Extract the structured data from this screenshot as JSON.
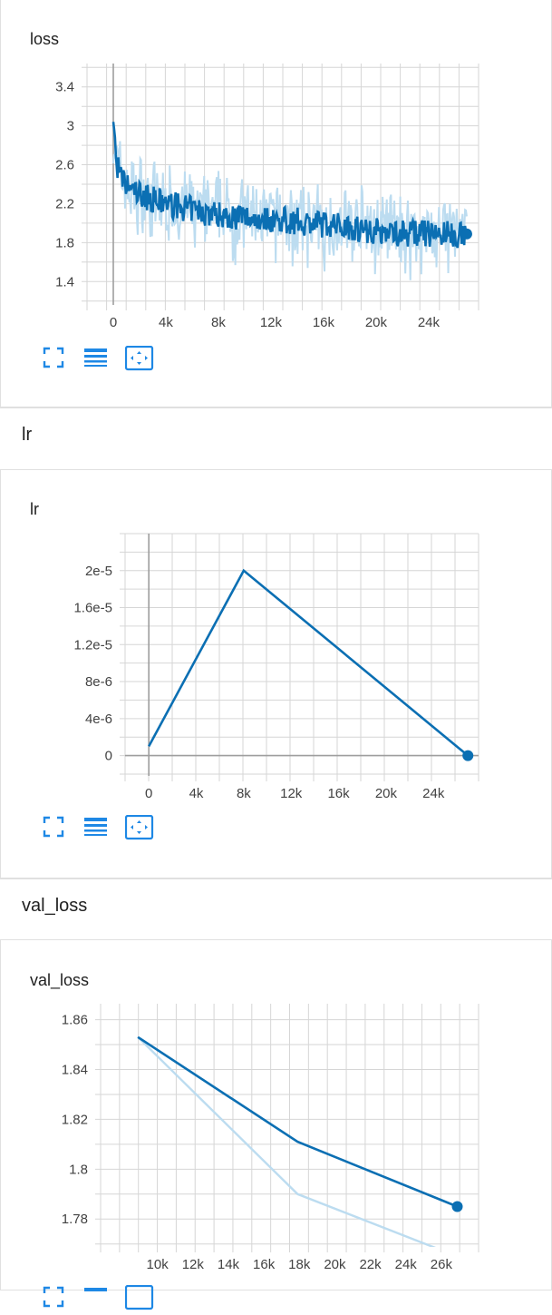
{
  "sections": [
    {
      "header": "",
      "card_title": "loss"
    },
    {
      "header": "lr",
      "card_title": "lr"
    },
    {
      "header": "val_loss",
      "card_title": "val_loss"
    }
  ],
  "toolbar": {
    "icons": [
      "fit-to-data-icon",
      "toggle-log-scale-icon",
      "reset-view-icon"
    ]
  },
  "colors": {
    "line": "#0b6fb3",
    "raw": "#bcdcf0",
    "grid": "#d6d6d6",
    "axis": "#9e9e9e"
  },
  "chart_data": [
    {
      "type": "line",
      "title": "loss",
      "xlabel": "",
      "ylabel": "",
      "xlim": [
        -2000,
        27800
      ],
      "ylim": [
        1.16,
        3.64
      ],
      "x_ticks": [
        0,
        4000,
        8000,
        12000,
        16000,
        20000,
        24000
      ],
      "x_tick_labels": [
        "0",
        "4k",
        "8k",
        "12k",
        "16k",
        "20k",
        "24k"
      ],
      "y_ticks": [
        1.4,
        1.8,
        2.2,
        2.6,
        3.0,
        3.4
      ],
      "y_tick_labels": [
        "1.4",
        "1.8",
        "2.2",
        "2.6",
        "3",
        "3.4"
      ],
      "grid": true,
      "series": [
        {
          "role": "smoothed",
          "x": [
            0,
            200,
            600,
            1000,
            1500,
            2000,
            3000,
            4000,
            5000,
            6000,
            7000,
            8000,
            9000,
            10000,
            11000,
            12000,
            13000,
            14000,
            15000,
            16000,
            17000,
            18000,
            19000,
            20000,
            21000,
            22000,
            23000,
            24000,
            25000,
            26000,
            26900
          ],
          "y": [
            3.1,
            2.65,
            2.45,
            2.38,
            2.34,
            2.3,
            2.24,
            2.2,
            2.17,
            2.14,
            2.11,
            2.09,
            2.07,
            2.06,
            2.05,
            2.04,
            2.03,
            2.02,
            2.0,
            1.99,
            1.98,
            1.97,
            1.94,
            1.92,
            1.91,
            1.9,
            1.9,
            1.89,
            1.89,
            1.88,
            1.89
          ]
        },
        {
          "role": "raw",
          "x": [
            0,
            200,
            600,
            1000,
            1500,
            2000,
            3000,
            4000,
            5000,
            6000,
            7000,
            8000,
            9000,
            10000,
            11000,
            12000,
            13000,
            14000,
            15000,
            16000,
            17000,
            18000,
            19000,
            20000,
            21000,
            22000,
            23000,
            24000,
            25000,
            26000,
            26900
          ],
          "y": [
            3.1,
            2.65,
            2.45,
            2.38,
            2.34,
            2.3,
            2.24,
            2.2,
            2.17,
            2.14,
            2.11,
            2.09,
            2.07,
            2.06,
            2.05,
            2.04,
            2.03,
            2.02,
            2.0,
            1.99,
            1.98,
            1.97,
            1.94,
            1.92,
            1.91,
            1.9,
            1.9,
            1.89,
            1.89,
            1.88,
            1.89
          ]
        }
      ],
      "last_point": {
        "x": 26900,
        "y": 1.89
      }
    },
    {
      "type": "line",
      "title": "lr",
      "xlabel": "",
      "ylabel": "",
      "xlim": [
        -2000,
        27800
      ],
      "ylim": [
        -2.2e-06,
        2.4e-05
      ],
      "x_ticks": [
        0,
        4000,
        8000,
        12000,
        16000,
        20000,
        24000
      ],
      "x_tick_labels": [
        "0",
        "4k",
        "8k",
        "12k",
        "16k",
        "20k",
        "24k"
      ],
      "y_ticks": [
        0,
        4e-06,
        8e-06,
        1.2e-05,
        1.6e-05,
        2e-05
      ],
      "y_tick_labels": [
        "0",
        "4e-6",
        "8e-6",
        "1.2e-5",
        "1.6e-5",
        "2e-5"
      ],
      "grid": true,
      "series": [
        {
          "role": "smoothed",
          "x": [
            0,
            8000,
            26900
          ],
          "y": [
            1e-06,
            2e-05,
            0
          ]
        }
      ],
      "last_point": {
        "x": 26900,
        "y": 0
      }
    },
    {
      "type": "line",
      "title": "val_loss",
      "xlabel": "",
      "ylabel": "",
      "xlim": [
        6800,
        28100
      ],
      "ylim": [
        1.7688,
        1.8664
      ],
      "x_ticks": [
        10000,
        12000,
        14000,
        16000,
        18000,
        20000,
        22000,
        24000,
        26000
      ],
      "x_tick_labels": [
        "10k",
        "12k",
        "14k",
        "16k",
        "18k",
        "20k",
        "22k",
        "24k",
        "26k"
      ],
      "y_ticks": [
        1.78,
        1.8,
        1.82,
        1.84,
        1.86
      ],
      "y_tick_labels": [
        "1.78",
        "1.8",
        "1.82",
        "1.84",
        "1.86"
      ],
      "grid": true,
      "series": [
        {
          "role": "smoothed",
          "x": [
            8900,
            17900,
            26900
          ],
          "y": [
            1.853,
            1.811,
            1.785
          ]
        },
        {
          "role": "raw",
          "x": [
            8900,
            17900,
            26900
          ],
          "y": [
            1.853,
            1.79,
            1.765
          ]
        }
      ],
      "last_point": {
        "x": 26900,
        "y": 1.785
      }
    }
  ]
}
